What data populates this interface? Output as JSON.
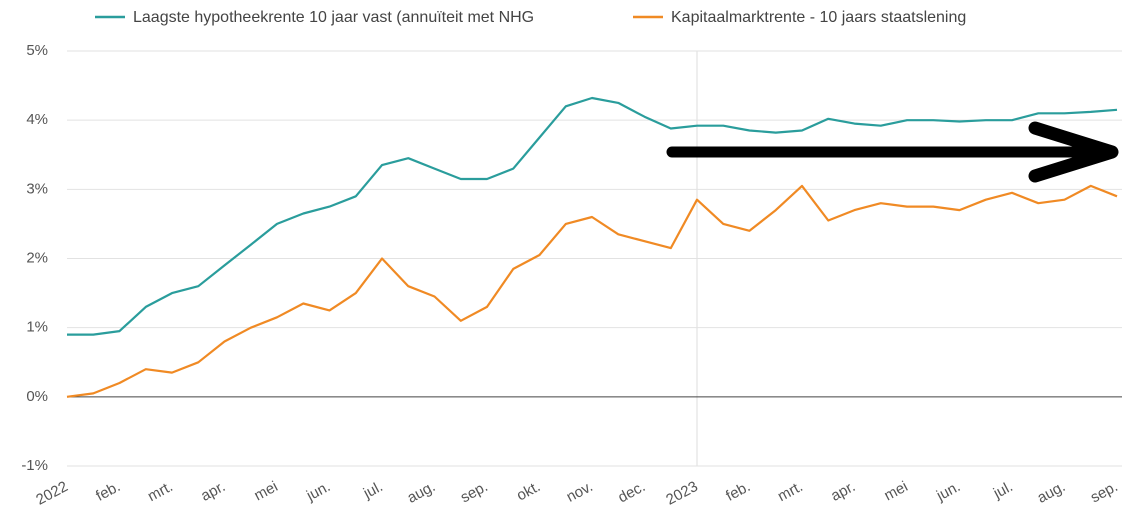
{
  "chart_data": {
    "type": "line",
    "categories": [
      "2022",
      null,
      "feb.",
      null,
      "mrt.",
      null,
      "apr.",
      null,
      "mei",
      null,
      "jun.",
      null,
      "jul.",
      null,
      "aug.",
      null,
      "sep.",
      null,
      "okt.",
      null,
      "nov.",
      null,
      "dec.",
      null,
      "2023",
      null,
      "feb.",
      null,
      "mrt.",
      null,
      "apr.",
      null,
      "mei",
      null,
      "jun.",
      null,
      "jul.",
      null,
      "aug.",
      null,
      "sep."
    ],
    "series": [
      {
        "name": "Laagste hypotheekrente 10 jaar vast (annuïteit met NHG",
        "color": "#2a9d9c",
        "values": [
          0.9,
          0.9,
          0.95,
          1.3,
          1.5,
          1.6,
          1.9,
          2.2,
          2.5,
          2.65,
          2.75,
          2.9,
          3.35,
          3.45,
          3.3,
          3.15,
          3.15,
          3.3,
          3.75,
          4.2,
          4.32,
          4.25,
          4.05,
          3.88,
          3.92,
          3.92,
          3.85,
          3.82,
          3.85,
          4.02,
          3.95,
          3.92,
          4.0,
          4.0,
          3.98,
          4.0,
          4.0,
          4.1,
          4.1,
          4.12,
          4.15
        ]
      },
      {
        "name": "Kapitaalmarktrente - 10 jaars staatslening",
        "color": "#f08a24",
        "values": [
          0.0,
          0.05,
          0.2,
          0.4,
          0.35,
          0.5,
          0.8,
          1.0,
          1.15,
          1.35,
          1.25,
          1.5,
          2.0,
          1.6,
          1.45,
          1.1,
          1.3,
          1.85,
          2.05,
          2.5,
          2.6,
          2.35,
          2.25,
          2.15,
          2.85,
          2.5,
          2.4,
          2.7,
          3.05,
          2.55,
          2.7,
          2.8,
          2.75,
          2.75,
          2.7,
          2.85,
          2.95,
          2.8,
          2.85,
          3.05,
          2.9
        ]
      }
    ],
    "ylim": [
      -1,
      5
    ],
    "yticks": [
      {
        "value": -1,
        "label": "-1%"
      },
      {
        "value": 0,
        "label": "0%"
      },
      {
        "value": 1,
        "label": "1%"
      },
      {
        "value": 2,
        "label": "2%"
      },
      {
        "value": 3,
        "label": "3%"
      },
      {
        "value": 4,
        "label": "4%"
      },
      {
        "value": 5,
        "label": "5%"
      }
    ],
    "grid": true
  }
}
